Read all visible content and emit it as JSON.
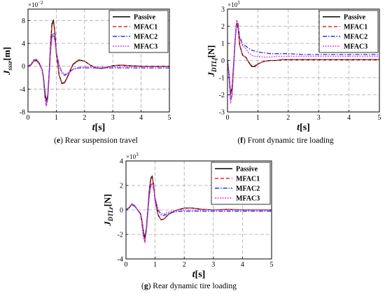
{
  "series_styles": [
    {
      "name": "Passive",
      "color": "#000000",
      "dash": ""
    },
    {
      "name": "MFAC1",
      "color": "#e8262d",
      "dash": "5,3"
    },
    {
      "name": "MFAC2",
      "color": "#2a35d8",
      "dash": "6,2,1.5,2"
    },
    {
      "name": "MFAC3",
      "color": "#e43be6",
      "dash": "2,1.5"
    }
  ],
  "chart_data": [
    {
      "type": "line",
      "caption": "(e) Rear suspension travel",
      "caption_letter": "e",
      "caption_text": " Rear suspension travel",
      "exponent_base": "×10",
      "exponent_power": "−2",
      "ylabel_main": "J",
      "ylabel_sub": "sssr",
      "ylabel_unit": "[m]",
      "xlabel_main": "t",
      "xlabel_unit": "[s]",
      "xlim": [
        0,
        5
      ],
      "ylim": [
        -8,
        10
      ],
      "xticks": [
        0,
        1,
        2,
        3,
        4,
        5
      ],
      "yticks": [
        -8,
        -4,
        0,
        4,
        8
      ],
      "grid": true,
      "legend_position": "top-right",
      "series": [
        {
          "name": "Passive",
          "x": [
            0,
            0.1,
            0.2,
            0.3,
            0.4,
            0.5,
            0.55,
            0.6,
            0.65,
            0.7,
            0.75,
            0.8,
            0.85,
            0.9,
            0.95,
            1.0,
            1.1,
            1.2,
            1.3,
            1.4,
            1.5,
            1.6,
            1.8,
            2.0,
            2.2,
            2.4,
            2.6,
            2.8,
            3.0,
            3.3,
            3.6,
            4.0,
            4.5,
            5.0
          ],
          "y": [
            0,
            0.2,
            0.9,
            1.0,
            0.4,
            -0.6,
            -2.0,
            -4.5,
            -6.2,
            -5.0,
            -1.0,
            4.0,
            7.5,
            8.0,
            6.0,
            2.5,
            -1.5,
            -3.0,
            -2.8,
            -1.8,
            -0.6,
            0.4,
            1.1,
            0.9,
            0.2,
            -0.3,
            -0.4,
            -0.2,
            0.1,
            0.2,
            0.1,
            0.0,
            0.0,
            0.0
          ]
        },
        {
          "name": "MFAC1",
          "x": [
            0,
            0.1,
            0.2,
            0.3,
            0.4,
            0.5,
            0.55,
            0.6,
            0.65,
            0.7,
            0.75,
            0.8,
            0.85,
            0.9,
            0.95,
            1.0,
            1.1,
            1.2,
            1.3,
            1.4,
            1.5,
            1.6,
            1.8,
            2.0,
            2.2,
            2.4,
            2.6,
            2.8,
            3.0,
            3.3,
            3.6,
            4.0,
            4.5,
            5.0
          ],
          "y": [
            0,
            0.2,
            0.9,
            1.0,
            0.4,
            -0.7,
            -2.2,
            -4.8,
            -6.5,
            -5.2,
            -1.2,
            3.8,
            7.2,
            7.8,
            5.8,
            2.3,
            -1.6,
            -3.1,
            -2.9,
            -1.9,
            -0.7,
            0.3,
            1.0,
            0.9,
            0.2,
            -0.3,
            -0.4,
            -0.2,
            0.1,
            0.2,
            0.1,
            0.0,
            0.0,
            0.0
          ]
        },
        {
          "name": "MFAC2",
          "x": [
            0,
            0.1,
            0.2,
            0.3,
            0.4,
            0.5,
            0.55,
            0.6,
            0.65,
            0.7,
            0.75,
            0.8,
            0.85,
            0.9,
            0.95,
            1.0,
            1.1,
            1.2,
            1.3,
            1.4,
            1.5,
            1.6,
            1.8,
            2.0,
            2.5,
            3.0,
            3.5,
            4.0,
            4.5,
            5.0
          ],
          "y": [
            0,
            0.3,
            1.1,
            1.2,
            0.6,
            -0.6,
            -2.4,
            -5.5,
            -7.0,
            -5.5,
            -1.5,
            3.0,
            5.5,
            5.8,
            4.5,
            2.5,
            0.2,
            -1.2,
            -1.6,
            -1.3,
            -0.9,
            -0.5,
            -0.3,
            -0.3,
            -0.3,
            -0.3,
            -0.3,
            -0.3,
            -0.3,
            -0.3
          ]
        },
        {
          "name": "MFAC3",
          "x": [
            0,
            0.1,
            0.2,
            0.3,
            0.4,
            0.5,
            0.55,
            0.6,
            0.65,
            0.7,
            0.75,
            0.8,
            0.85,
            0.9,
            0.95,
            1.0,
            1.1,
            1.2,
            1.3,
            1.4,
            1.5,
            1.6,
            1.8,
            2.0,
            2.5,
            3.0,
            3.5,
            4.0,
            4.5,
            5.0
          ],
          "y": [
            0,
            0.3,
            1.1,
            1.2,
            0.6,
            -0.6,
            -2.4,
            -5.5,
            -7.0,
            -5.6,
            -1.8,
            2.5,
            5.0,
            5.5,
            4.5,
            2.6,
            0.3,
            -1.0,
            -1.4,
            -1.2,
            -0.8,
            -0.5,
            -0.2,
            -0.1,
            -0.1,
            -0.1,
            -0.1,
            -0.1,
            -0.1,
            -0.1
          ]
        }
      ]
    },
    {
      "type": "line",
      "caption": "(f) Front dynamic tire loading",
      "caption_letter": "f",
      "caption_text": " Front dynamic tire loading",
      "exponent_base": "×10",
      "exponent_power": "3",
      "ylabel_main": "J",
      "ylabel_sub": "DTLf",
      "ylabel_unit": "[N]",
      "xlabel_main": "t",
      "xlabel_unit": "[s]",
      "xlim": [
        0,
        5
      ],
      "ylim": [
        -3,
        3
      ],
      "xticks": [
        0,
        1,
        2,
        3,
        4,
        5
      ],
      "yticks": [
        -3,
        -2,
        -1,
        0,
        1,
        2,
        3
      ],
      "grid": true,
      "legend_position": "top-right",
      "series": [
        {
          "name": "Passive",
          "x": [
            0,
            0.05,
            0.1,
            0.15,
            0.2,
            0.25,
            0.3,
            0.35,
            0.4,
            0.5,
            0.6,
            0.7,
            0.8,
            0.9,
            1.0,
            1.2,
            1.4,
            1.6,
            1.8,
            2.0,
            2.5,
            3.0,
            3.5,
            4.0,
            4.5,
            5.0
          ],
          "y": [
            0,
            -0.8,
            -1.9,
            -1.6,
            -0.3,
            1.2,
            2.2,
            1.9,
            0.9,
            0.3,
            0.2,
            -0.1,
            -0.35,
            -0.35,
            -0.2,
            -0.05,
            0.0,
            0.0,
            0.05,
            0.05,
            0.05,
            0.05,
            0.05,
            0.05,
            0.05,
            0.05
          ]
        },
        {
          "name": "MFAC1",
          "x": [
            0,
            0.05,
            0.1,
            0.15,
            0.2,
            0.25,
            0.3,
            0.35,
            0.4,
            0.5,
            0.6,
            0.7,
            0.8,
            0.9,
            1.0,
            1.2,
            1.4,
            1.6,
            1.8,
            2.0,
            2.5,
            3.0,
            3.5,
            4.0,
            4.5,
            5.0
          ],
          "y": [
            0,
            -0.8,
            -2.0,
            -1.7,
            -0.4,
            1.1,
            2.2,
            1.9,
            0.9,
            0.3,
            0.2,
            -0.1,
            -0.3,
            -0.3,
            -0.2,
            -0.05,
            0.0,
            0.0,
            0.05,
            0.05,
            0.05,
            0.05,
            0.05,
            0.05,
            0.05,
            0.05
          ]
        },
        {
          "name": "MFAC2",
          "x": [
            0,
            0.05,
            0.1,
            0.15,
            0.2,
            0.25,
            0.3,
            0.35,
            0.4,
            0.5,
            0.6,
            0.7,
            0.8,
            0.9,
            1.0,
            1.2,
            1.4,
            1.6,
            1.8,
            2.0,
            2.5,
            3.0,
            3.5,
            4.0,
            4.5,
            5.0
          ],
          "y": [
            0,
            -0.9,
            -2.3,
            -2.0,
            -0.5,
            1.2,
            2.3,
            2.1,
            1.4,
            0.95,
            0.85,
            0.7,
            0.6,
            0.55,
            0.5,
            0.45,
            0.4,
            0.4,
            0.4,
            0.4,
            0.35,
            0.35,
            0.35,
            0.35,
            0.35,
            0.35
          ]
        },
        {
          "name": "MFAC3",
          "x": [
            0,
            0.05,
            0.1,
            0.15,
            0.2,
            0.25,
            0.3,
            0.35,
            0.4,
            0.5,
            0.6,
            0.7,
            0.8,
            0.9,
            1.0,
            1.2,
            1.4,
            1.6,
            1.8,
            2.0,
            2.5,
            3.0,
            3.5,
            4.0,
            4.5,
            5.0
          ],
          "y": [
            0,
            -0.9,
            -2.5,
            -2.1,
            -0.6,
            1.2,
            2.35,
            2.2,
            1.3,
            0.85,
            0.7,
            0.45,
            0.3,
            0.25,
            0.22,
            0.2,
            0.2,
            0.25,
            0.25,
            0.25,
            0.25,
            0.25,
            0.25,
            0.25,
            0.25,
            0.25
          ]
        }
      ]
    },
    {
      "type": "line",
      "caption": "(g) Rear dynamic tire loading",
      "caption_letter": "g",
      "caption_text": " Rear dynamic tire loading",
      "exponent_base": "×10",
      "exponent_power": "3",
      "ylabel_main": "J",
      "ylabel_sub": "DTLr",
      "ylabel_unit": "[N]",
      "xlabel_main": "t",
      "xlabel_unit": "[s]",
      "xlim": [
        0,
        5
      ],
      "ylim": [
        -4,
        4
      ],
      "xticks": [
        0,
        1,
        2,
        3,
        4,
        5
      ],
      "yticks": [
        -4,
        -2,
        0,
        2,
        4
      ],
      "grid": true,
      "legend_position": "top-right",
      "series": [
        {
          "name": "Passive",
          "x": [
            0,
            0.1,
            0.2,
            0.3,
            0.4,
            0.5,
            0.55,
            0.6,
            0.65,
            0.7,
            0.75,
            0.8,
            0.85,
            0.9,
            0.95,
            1.0,
            1.1,
            1.2,
            1.3,
            1.4,
            1.5,
            1.7,
            2.0,
            2.3,
            2.6,
            3.0,
            3.5,
            4.0,
            4.5,
            5.0
          ],
          "y": [
            0,
            0.15,
            0.45,
            0.3,
            0.0,
            -0.3,
            -0.9,
            -1.8,
            -2.3,
            -1.5,
            0.0,
            1.6,
            2.6,
            2.75,
            2.0,
            0.8,
            -0.4,
            -0.8,
            -0.75,
            -0.5,
            -0.3,
            -0.05,
            0.15,
            0.15,
            0.05,
            0.0,
            0.05,
            0.0,
            0.0,
            0.0
          ]
        },
        {
          "name": "MFAC1",
          "x": [
            0,
            0.1,
            0.2,
            0.3,
            0.4,
            0.5,
            0.55,
            0.6,
            0.65,
            0.7,
            0.75,
            0.8,
            0.85,
            0.9,
            0.95,
            1.0,
            1.1,
            1.2,
            1.3,
            1.4,
            1.5,
            1.7,
            2.0,
            2.3,
            2.6,
            3.0,
            3.5,
            4.0,
            4.5,
            5.0
          ],
          "y": [
            0,
            0.15,
            0.45,
            0.3,
            0.0,
            -0.3,
            -0.9,
            -1.9,
            -2.4,
            -1.6,
            -0.1,
            1.5,
            2.5,
            2.7,
            2.0,
            0.8,
            -0.4,
            -0.8,
            -0.75,
            -0.5,
            -0.3,
            -0.05,
            0.15,
            0.15,
            0.05,
            0.0,
            0.05,
            0.0,
            0.0,
            0.0
          ]
        },
        {
          "name": "MFAC2",
          "x": [
            0,
            0.1,
            0.2,
            0.3,
            0.4,
            0.5,
            0.55,
            0.6,
            0.65,
            0.7,
            0.75,
            0.8,
            0.85,
            0.9,
            0.95,
            1.0,
            1.1,
            1.2,
            1.3,
            1.4,
            1.5,
            1.7,
            2.0,
            2.5,
            3.0,
            3.5,
            4.0,
            4.5,
            5.0
          ],
          "y": [
            0,
            0.2,
            0.5,
            0.35,
            0.0,
            -0.4,
            -1.2,
            -2.2,
            -2.6,
            -1.7,
            -0.2,
            1.2,
            2.0,
            2.2,
            1.7,
            0.9,
            0.0,
            -0.4,
            -0.45,
            -0.35,
            -0.25,
            -0.15,
            -0.1,
            -0.1,
            -0.1,
            -0.1,
            -0.1,
            -0.1,
            -0.1
          ]
        },
        {
          "name": "MFAC3",
          "x": [
            0,
            0.1,
            0.2,
            0.3,
            0.4,
            0.5,
            0.55,
            0.6,
            0.65,
            0.7,
            0.75,
            0.8,
            0.85,
            0.9,
            0.95,
            1.0,
            1.1,
            1.2,
            1.3,
            1.4,
            1.5,
            1.7,
            2.0,
            2.5,
            3.0,
            3.5,
            4.0,
            4.5,
            5.0
          ],
          "y": [
            0,
            0.2,
            0.5,
            0.35,
            0.0,
            -0.4,
            -1.2,
            -2.2,
            -2.7,
            -1.8,
            -0.3,
            1.1,
            1.9,
            2.2,
            1.8,
            1.0,
            0.1,
            -0.3,
            -0.35,
            -0.25,
            -0.15,
            -0.05,
            0.0,
            0.0,
            0.0,
            0.0,
            0.0,
            0.0,
            0.0
          ]
        }
      ]
    }
  ]
}
